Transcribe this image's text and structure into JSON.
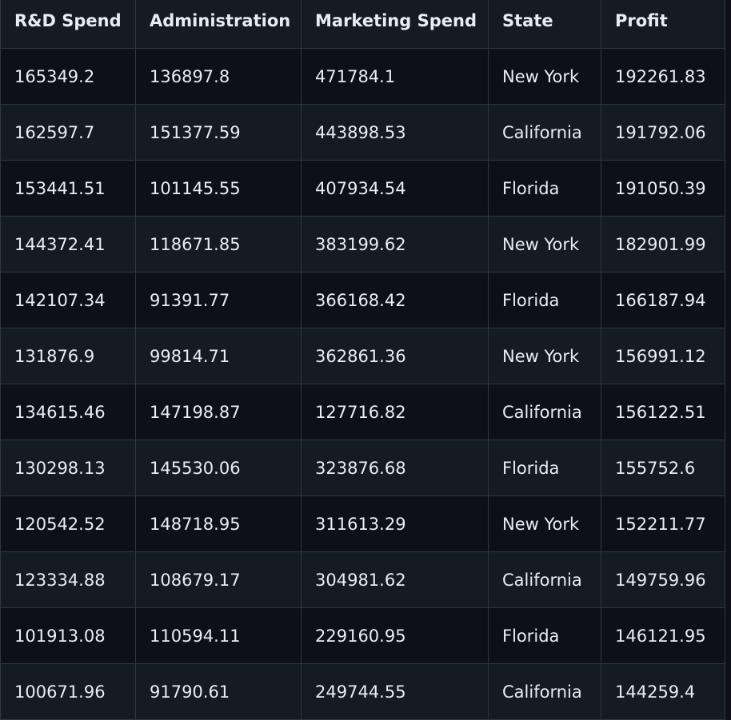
{
  "table": {
    "columns": [
      "R&D Spend",
      "Administration",
      "Marketing Spend",
      "State",
      "Profit"
    ],
    "rows": [
      [
        "165349.2",
        "136897.8",
        "471784.1",
        "New York",
        "192261.83"
      ],
      [
        "162597.7",
        "151377.59",
        "443898.53",
        "California",
        "191792.06"
      ],
      [
        "153441.51",
        "101145.55",
        "407934.54",
        "Florida",
        "191050.39"
      ],
      [
        "144372.41",
        "118671.85",
        "383199.62",
        "New York",
        "182901.99"
      ],
      [
        "142107.34",
        "91391.77",
        "366168.42",
        "Florida",
        "166187.94"
      ],
      [
        "131876.9",
        "99814.71",
        "362861.36",
        "New York",
        "156991.12"
      ],
      [
        "134615.46",
        "147198.87",
        "127716.82",
        "California",
        "156122.51"
      ],
      [
        "130298.13",
        "145530.06",
        "323876.68",
        "Florida",
        "155752.6"
      ],
      [
        "120542.52",
        "148718.95",
        "311613.29",
        "New York",
        "152211.77"
      ],
      [
        "123334.88",
        "108679.17",
        "304981.62",
        "California",
        "149759.96"
      ],
      [
        "101913.08",
        "110594.11",
        "229160.95",
        "Florida",
        "146121.95"
      ],
      [
        "100671.96",
        "91790.61",
        "249744.55",
        "California",
        "144259.4"
      ]
    ]
  }
}
